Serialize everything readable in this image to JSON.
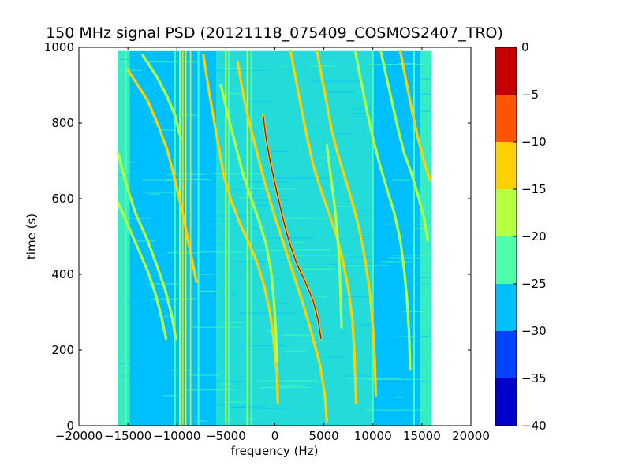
{
  "chart_data": {
    "type": "heatmap",
    "title": "150 MHz signal PSD (20121118_075409_COSMOS2407_TRO)",
    "xlabel": "frequency (Hz)",
    "ylabel": "time (s)",
    "xlim": [
      -20000,
      20000
    ],
    "ylim": [
      0,
      1000
    ],
    "x_ticks": [
      -20000,
      -15000,
      -10000,
      -5000,
      0,
      5000,
      10000,
      15000,
      20000
    ],
    "y_ticks": [
      0,
      200,
      400,
      600,
      800,
      1000
    ],
    "x_tick_labels": [
      "−20000",
      "−15000",
      "−10000",
      "−5000",
      "0",
      "5000",
      "10000",
      "15000",
      "20000"
    ],
    "y_tick_labels": [
      "0",
      "200",
      "400",
      "600",
      "800",
      "1000"
    ],
    "data_extent": {
      "x": [
        -16000,
        16000
      ],
      "y": [
        0,
        990
      ]
    },
    "background_level": -27.5,
    "noise_band_level": -22.5,
    "vertical_lines": [
      {
        "x": -15200,
        "level": -22
      },
      {
        "x": -10200,
        "level": -22
      },
      {
        "x": -9700,
        "level": -17
      },
      {
        "x": -9400,
        "level": -14
      },
      {
        "x": -9100,
        "level": -17
      },
      {
        "x": -8600,
        "level": -14
      },
      {
        "x": -7800,
        "level": -22
      },
      {
        "x": -5000,
        "level": -17
      },
      {
        "x": -4700,
        "level": -22
      },
      {
        "x": -2800,
        "level": -17
      },
      {
        "x": -2400,
        "level": -22
      },
      {
        "x": 10000,
        "level": -22
      },
      {
        "x": 14200,
        "level": -22
      }
    ],
    "doppler_traces": [
      {
        "level": -2,
        "points": [
          [
            -1200,
            820
          ],
          [
            -900,
            760
          ],
          [
            -500,
            700
          ],
          [
            0,
            640
          ],
          [
            700,
            560
          ],
          [
            1400,
            490
          ],
          [
            2200,
            430
          ],
          [
            3100,
            380
          ],
          [
            3900,
            330
          ],
          [
            4400,
            280
          ],
          [
            4700,
            230
          ]
        ]
      },
      {
        "level": -12,
        "points": [
          [
            -3800,
            960
          ],
          [
            -3200,
            870
          ],
          [
            -2500,
            790
          ],
          [
            -1800,
            720
          ],
          [
            -1000,
            640
          ],
          [
            -100,
            560
          ],
          [
            900,
            480
          ],
          [
            1900,
            400
          ],
          [
            2900,
            320
          ],
          [
            3800,
            240
          ],
          [
            4600,
            160
          ],
          [
            5100,
            80
          ],
          [
            5300,
            10
          ]
        ]
      },
      {
        "level": -12,
        "points": [
          [
            -7300,
            980
          ],
          [
            -6700,
            880
          ],
          [
            -5900,
            760
          ],
          [
            -5200,
            660
          ],
          [
            -4400,
            590
          ],
          [
            -3500,
            530
          ],
          [
            -2600,
            480
          ],
          [
            -1800,
            430
          ],
          [
            -1100,
            370
          ],
          [
            -500,
            300
          ],
          [
            -100,
            220
          ],
          [
            200,
            140
          ],
          [
            300,
            60
          ]
        ]
      },
      {
        "level": -14,
        "points": [
          [
            -15000,
            940
          ],
          [
            -14000,
            900
          ],
          [
            -13000,
            860
          ],
          [
            -12000,
            800
          ],
          [
            -11000,
            730
          ],
          [
            -10200,
            650
          ],
          [
            -9400,
            560
          ],
          [
            -8700,
            470
          ],
          [
            -8000,
            380
          ]
        ]
      },
      {
        "level": -17,
        "points": [
          [
            -13500,
            980
          ],
          [
            -12000,
            920
          ],
          [
            -11000,
            870
          ],
          [
            -10200,
            820
          ],
          [
            -9600,
            760
          ]
        ]
      },
      {
        "level": -17,
        "points": [
          [
            -16000,
            720
          ],
          [
            -15200,
            640
          ],
          [
            -14200,
            560
          ],
          [
            -13000,
            490
          ],
          [
            -12000,
            420
          ],
          [
            -11200,
            360
          ],
          [
            -10600,
            300
          ],
          [
            -10100,
            230
          ]
        ]
      },
      {
        "level": -17,
        "points": [
          [
            -16000,
            590
          ],
          [
            -15000,
            530
          ],
          [
            -14000,
            470
          ],
          [
            -13000,
            410
          ],
          [
            -12200,
            350
          ],
          [
            -11600,
            290
          ],
          [
            -11100,
            230
          ]
        ]
      },
      {
        "level": -17,
        "points": [
          [
            -5500,
            900
          ],
          [
            -4800,
            820
          ],
          [
            -4000,
            740
          ],
          [
            -3200,
            660
          ],
          [
            -2400,
            600
          ],
          [
            -1600,
            540
          ],
          [
            -900,
            480
          ],
          [
            -400,
            410
          ],
          [
            -100,
            330
          ],
          [
            100,
            250
          ],
          [
            200,
            170
          ]
        ]
      },
      {
        "level": -12,
        "points": [
          [
            1600,
            990
          ],
          [
            2100,
            920
          ],
          [
            2700,
            840
          ],
          [
            3300,
            760
          ],
          [
            3900,
            690
          ],
          [
            4600,
            630
          ],
          [
            5400,
            570
          ],
          [
            6200,
            510
          ],
          [
            6900,
            440
          ],
          [
            7500,
            360
          ],
          [
            7900,
            280
          ],
          [
            8100,
            200
          ],
          [
            8200,
            120
          ],
          [
            8300,
            60
          ]
        ]
      },
      {
        "level": -14,
        "points": [
          [
            4300,
            990
          ],
          [
            4800,
            920
          ],
          [
            5300,
            850
          ],
          [
            5800,
            780
          ],
          [
            6400,
            720
          ],
          [
            7100,
            660
          ],
          [
            7900,
            590
          ],
          [
            8600,
            520
          ],
          [
            9200,
            440
          ],
          [
            9700,
            350
          ],
          [
            10000,
            260
          ],
          [
            10200,
            170
          ],
          [
            10300,
            80
          ]
        ]
      },
      {
        "level": -17,
        "points": [
          [
            8200,
            990
          ],
          [
            8800,
            910
          ],
          [
            9400,
            830
          ],
          [
            10000,
            760
          ],
          [
            10700,
            690
          ],
          [
            11500,
            620
          ],
          [
            12200,
            560
          ],
          [
            12800,
            490
          ],
          [
            13200,
            410
          ],
          [
            13500,
            330
          ],
          [
            13700,
            240
          ],
          [
            13800,
            150
          ]
        ]
      },
      {
        "level": -17,
        "points": [
          [
            10800,
            990
          ],
          [
            11400,
            920
          ],
          [
            12000,
            850
          ],
          [
            12600,
            780
          ],
          [
            13200,
            720
          ],
          [
            13900,
            670
          ],
          [
            14600,
            610
          ],
          [
            15200,
            550
          ],
          [
            15600,
            490
          ]
        ]
      },
      {
        "level": -14,
        "points": [
          [
            12800,
            990
          ],
          [
            13400,
            910
          ],
          [
            14000,
            830
          ],
          [
            14600,
            760
          ],
          [
            15200,
            700
          ],
          [
            15800,
            650
          ]
        ]
      },
      {
        "level": -17,
        "points": [
          [
            5300,
            740
          ],
          [
            5700,
            660
          ],
          [
            6100,
            580
          ],
          [
            6400,
            500
          ],
          [
            6600,
            420
          ],
          [
            6700,
            340
          ],
          [
            6800,
            260
          ]
        ]
      }
    ],
    "colorbar": {
      "min": -40,
      "max": 0,
      "tick_labels": [
        "−40",
        "−35",
        "−30",
        "−25",
        "−20",
        "−15",
        "−10",
        "−5",
        "0"
      ],
      "bands": [
        {
          "from": -40,
          "to": -35,
          "color": "#0000c8"
        },
        {
          "from": -35,
          "to": -30,
          "color": "#0044ff"
        },
        {
          "from": -30,
          "to": -25,
          "color": "#00bfff"
        },
        {
          "from": -25,
          "to": -20,
          "color": "#4dffac"
        },
        {
          "from": -20,
          "to": -15,
          "color": "#b6ff40"
        },
        {
          "from": -15,
          "to": -10,
          "color": "#ffd000"
        },
        {
          "from": -10,
          "to": -5,
          "color": "#ff5500"
        },
        {
          "from": -5,
          "to": 0,
          "color": "#c40000"
        }
      ]
    }
  }
}
